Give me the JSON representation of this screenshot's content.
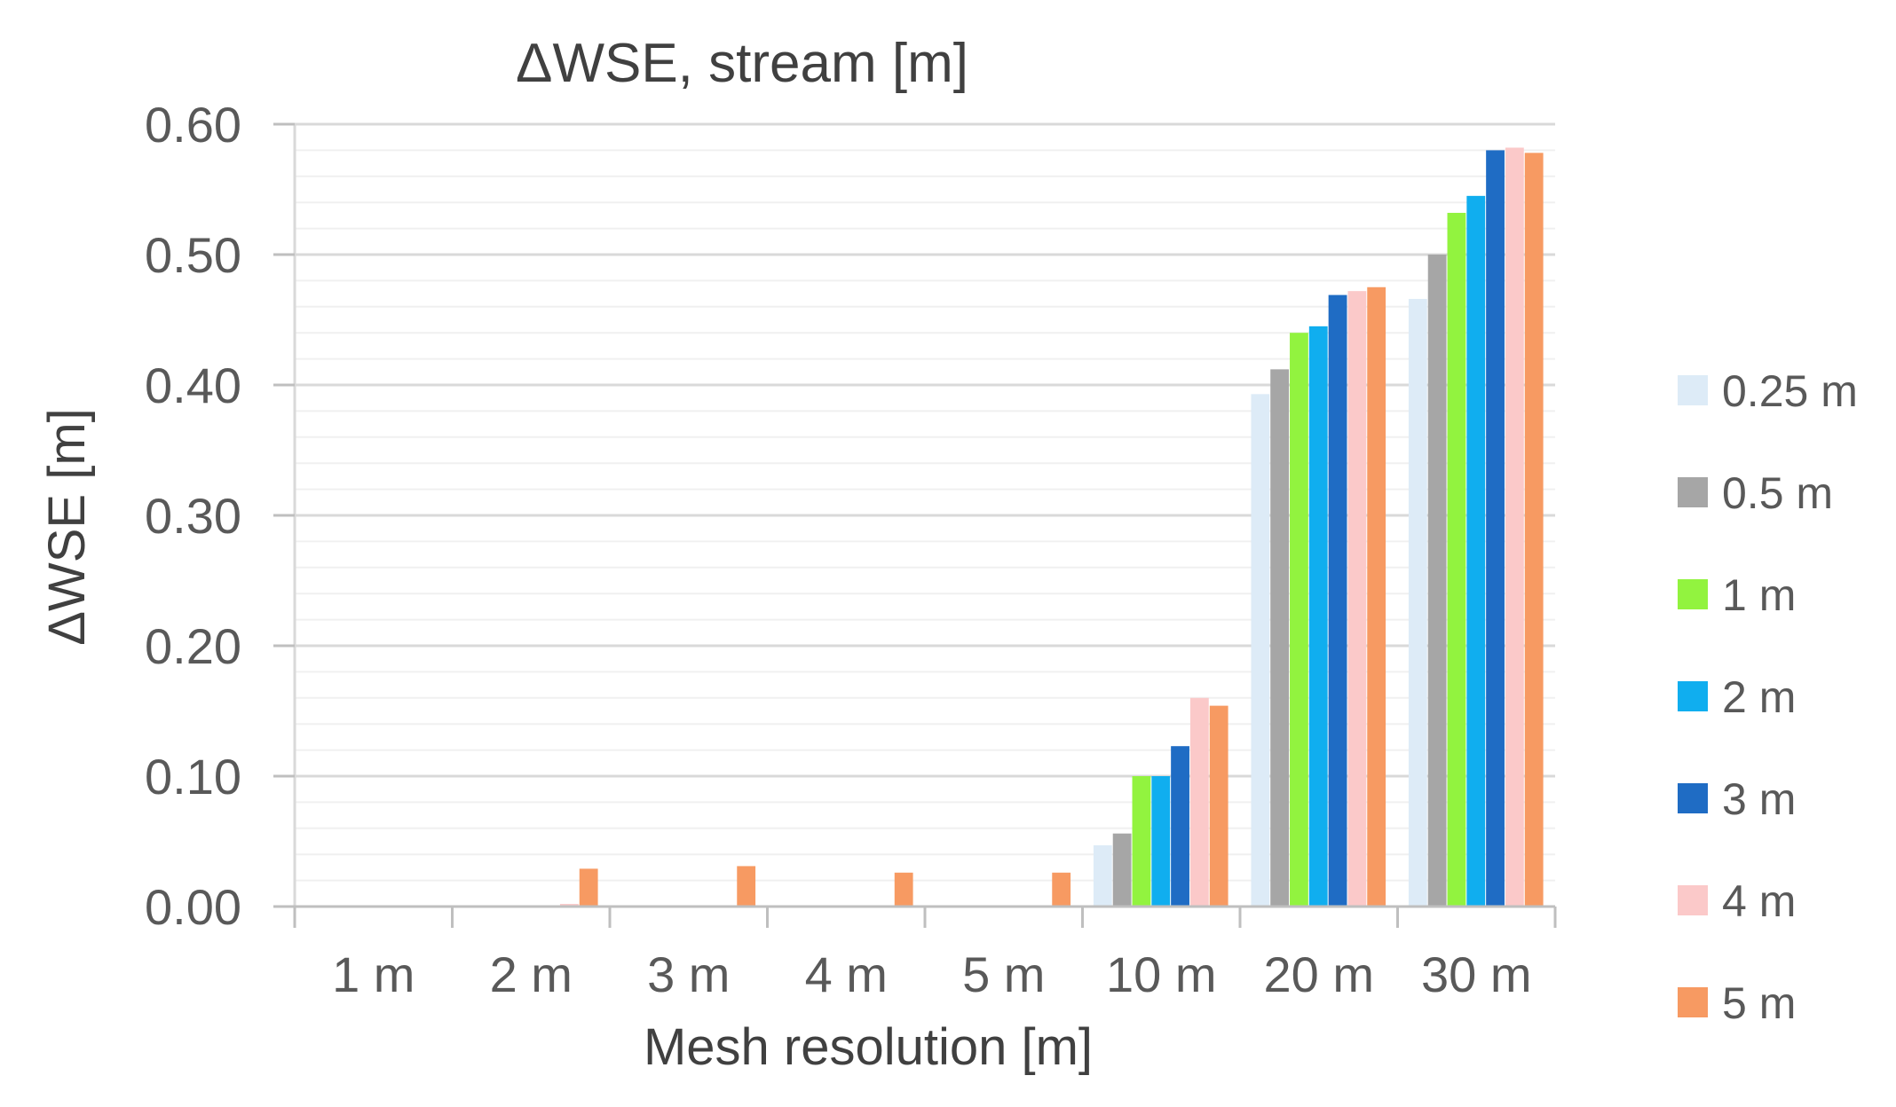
{
  "chart_data": {
    "type": "bar",
    "title": "ΔWSE, stream  [m]",
    "xlabel": "Mesh resolution [m]",
    "ylabel": "ΔWSE [m]",
    "ylim": [
      0,
      0.6
    ],
    "yticks": [
      "0.00",
      "0.10",
      "0.20",
      "0.30",
      "0.40",
      "0.50",
      "0.60"
    ],
    "grid": true,
    "legend_position": "right",
    "categories": [
      "1 m",
      "2 m",
      "3 m",
      "4 m",
      "5 m",
      "10 m",
      "20 m",
      "30 m"
    ],
    "series": [
      {
        "name": "0.25 m",
        "color": "#DDEBF7",
        "values": [
          0,
          0,
          0,
          0,
          0,
          0.047,
          0.393,
          0.466
        ]
      },
      {
        "name": "0.5 m",
        "color": "#A6A6A6",
        "values": [
          0,
          0,
          0,
          0,
          0,
          0.056,
          0.412,
          0.5
        ]
      },
      {
        "name": "1 m",
        "color": "#92F33F",
        "values": [
          0,
          0,
          0,
          0,
          0,
          0.1,
          0.44,
          0.532
        ]
      },
      {
        "name": "2 m",
        "color": "#10AEEF",
        "values": [
          0,
          0,
          0,
          0,
          0,
          0.1,
          0.445,
          0.545
        ]
      },
      {
        "name": "3 m",
        "color": "#1F6CC4",
        "values": [
          0,
          0,
          0,
          0,
          0,
          0.123,
          0.469,
          0.58
        ]
      },
      {
        "name": "4 m",
        "color": "#FBC9C9",
        "values": [
          0,
          0.002,
          0,
          0,
          0,
          0.16,
          0.472,
          0.582
        ]
      },
      {
        "name": "5 m",
        "color": "#F79A62",
        "values": [
          0,
          0.029,
          0.031,
          0.026,
          0.026,
          0.154,
          0.475,
          0.578
        ]
      }
    ]
  }
}
